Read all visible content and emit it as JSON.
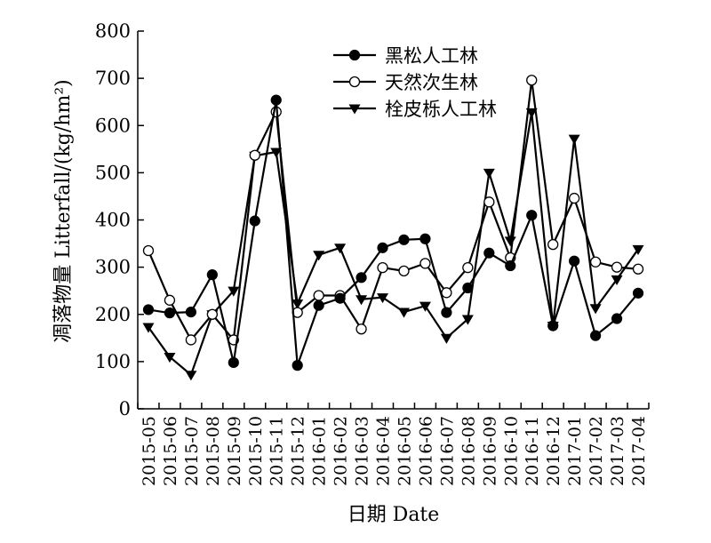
{
  "chart_data": {
    "type": "line",
    "title": "",
    "xlabel": "日期 Date",
    "ylabel": "凋落物量 Litterfall/(kg/hm²)",
    "ylim": [
      0,
      800
    ],
    "yticks": [
      0,
      100,
      200,
      300,
      400,
      500,
      600,
      700,
      800
    ],
    "grid": false,
    "legend_position": "top-center",
    "categories": [
      "2015-05",
      "2015-06",
      "2015-07",
      "2015-08",
      "2015-09",
      "2015-10",
      "2015-11",
      "2015-12",
      "2016-01",
      "2016-02",
      "2016-03",
      "2016-04",
      "2016-05",
      "2016-06",
      "2016-07",
      "2016-08",
      "2016-09",
      "2016-10",
      "2016-11",
      "2016-12",
      "2017-01",
      "2017-02",
      "2017-03",
      "2017-04"
    ],
    "series": [
      {
        "name": "黑松人工林",
        "marker": "filled-circle",
        "values": [
          210,
          203,
          205,
          284,
          98,
          398,
          654,
          92,
          219,
          234,
          278,
          341,
          358,
          360,
          204,
          256,
          330,
          303,
          410,
          176,
          313,
          155,
          191,
          245
        ]
      },
      {
        "name": "天然次生林",
        "marker": "open-circle",
        "values": [
          335,
          230,
          146,
          200,
          146,
          537,
          629,
          204,
          240,
          240,
          169,
          299,
          292,
          308,
          246,
          299,
          438,
          320,
          696,
          348,
          446,
          311,
          300,
          296
        ]
      },
      {
        "name": "栓皮栎人工林",
        "marker": "filled-triangle-down",
        "values": [
          173,
          110,
          72,
          200,
          250,
          536,
          544,
          223,
          326,
          341,
          232,
          236,
          205,
          218,
          150,
          190,
          500,
          356,
          628,
          176,
          572,
          213,
          274,
          338
        ]
      }
    ]
  }
}
